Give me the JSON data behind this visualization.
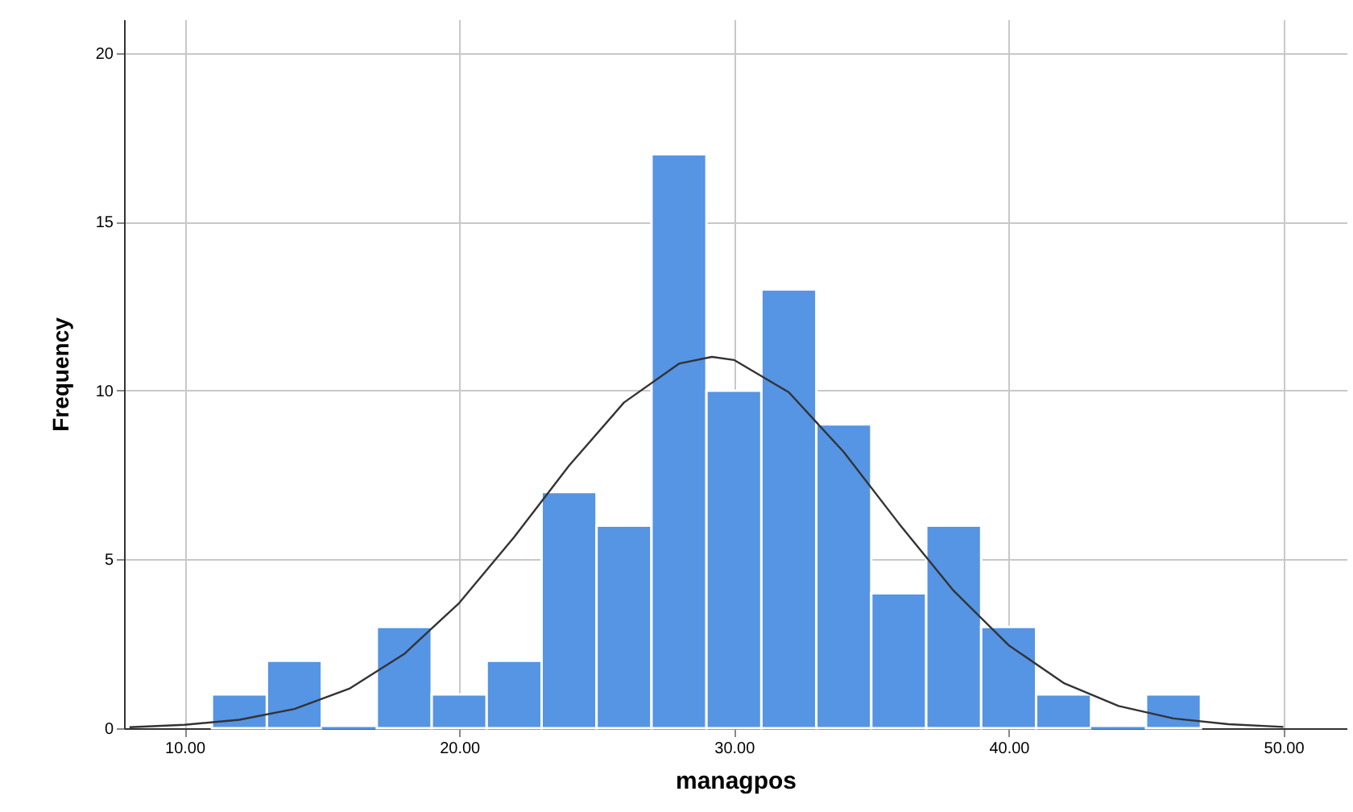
{
  "chart_data": {
    "type": "histogram",
    "xlabel": "managpos",
    "ylabel": "Frequency",
    "bins": [
      11,
      13,
      15,
      17,
      19,
      21,
      23,
      25,
      27,
      29,
      31,
      33,
      35,
      37,
      39,
      41,
      43,
      45,
      47
    ],
    "values": [
      1,
      2,
      0,
      3,
      1,
      2,
      7,
      6,
      17,
      10,
      13,
      9,
      4,
      6,
      3,
      1,
      0,
      1
    ],
    "color": "#5694e4",
    "series": [
      {
        "type": "line",
        "color": "#333333",
        "x": [
          8,
          10,
          12,
          14,
          16,
          18,
          20,
          22,
          24,
          26,
          28,
          29.2,
          30,
          32,
          34,
          36,
          38,
          40,
          42,
          44,
          46,
          48,
          50
        ],
        "values": [
          0.03,
          0.1,
          0.25,
          0.57,
          1.17,
          2.2,
          3.71,
          5.66,
          7.78,
          9.65,
          10.8,
          11,
          10.91,
          9.95,
          8.18,
          6.07,
          4.07,
          2.46,
          1.34,
          0.66,
          0.29,
          0.12,
          0.04
        ]
      }
    ],
    "xlim": [
      7.8,
      52.3
    ],
    "xticks": [
      {
        "value": 10,
        "label": "10.00"
      },
      {
        "value": 20,
        "label": "20.00"
      },
      {
        "value": 30,
        "label": "30.00"
      },
      {
        "value": 40,
        "label": "40.00"
      },
      {
        "value": 50,
        "label": "50.00"
      }
    ],
    "ylim": [
      0,
      21
    ],
    "yticks": [
      0,
      5,
      10,
      15,
      20
    ],
    "grid": true
  }
}
